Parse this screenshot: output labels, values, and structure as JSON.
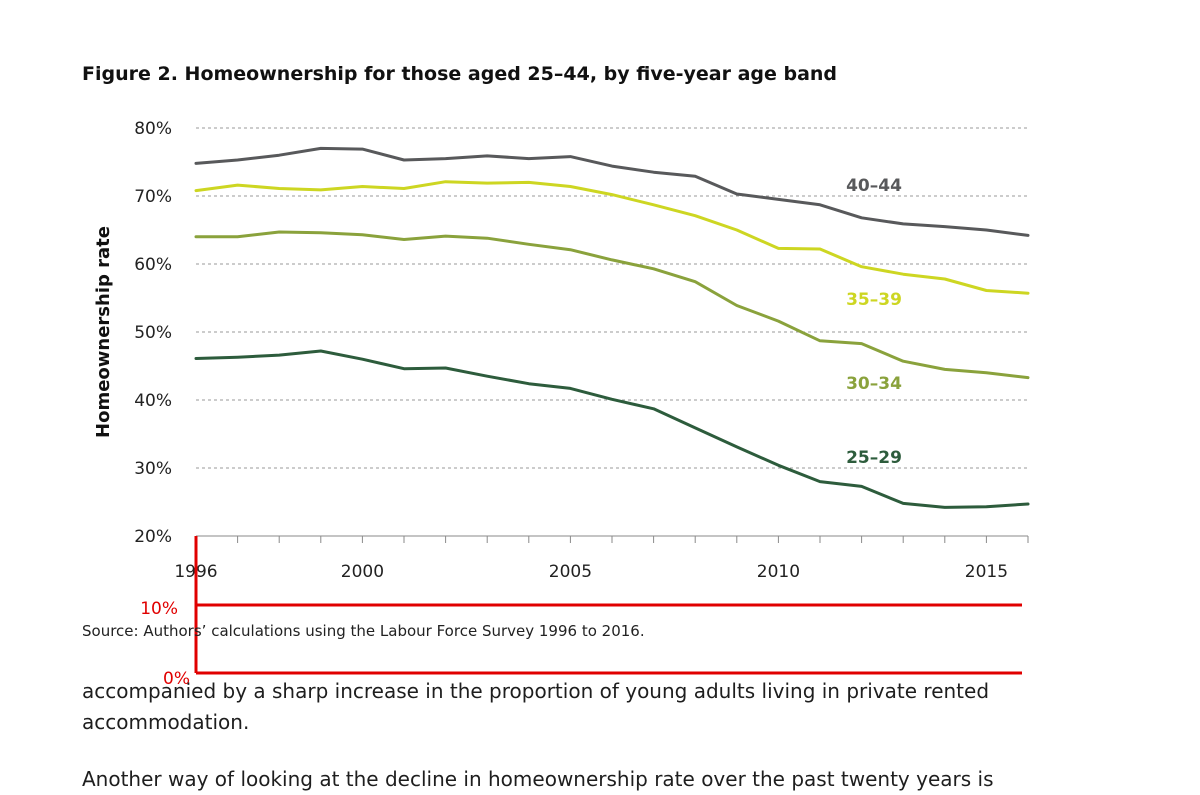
{
  "chart_data": {
    "type": "line",
    "title": "Figure 2. Homeownership for those aged 25–44, by five-year age band",
    "ylabel": "Homeownership rate",
    "xlabel": "",
    "xlim": [
      1996,
      2016
    ],
    "ylim": [
      20,
      80
    ],
    "x_ticks": [
      1996,
      2000,
      2005,
      2010,
      2015
    ],
    "x_tick_labels": [
      "1996",
      "2000",
      "2005",
      "2010",
      "2015"
    ],
    "y_ticks": [
      20,
      30,
      40,
      50,
      60,
      70,
      80
    ],
    "y_tick_labels": [
      "20%",
      "30%",
      "40%",
      "50%",
      "60%",
      "70%",
      "80%"
    ],
    "grid": "horizontal dashed",
    "x": [
      1996,
      1997,
      1998,
      1999,
      2000,
      2001,
      2002,
      2003,
      2004,
      2005,
      2006,
      2007,
      2008,
      2009,
      2010,
      2011,
      2012,
      2013,
      2014,
      2015,
      2016
    ],
    "series": [
      {
        "name": "40–44",
        "color": "#58595b",
        "values": [
          74.8,
          75.3,
          76.0,
          77.0,
          76.9,
          75.3,
          75.5,
          75.9,
          75.5,
          75.8,
          74.4,
          73.5,
          72.9,
          70.3,
          69.5,
          68.7,
          66.8,
          65.9,
          65.5,
          65.0,
          64.2
        ]
      },
      {
        "name": "35–39",
        "color": "#cdd622",
        "values": [
          70.8,
          71.6,
          71.1,
          70.9,
          71.4,
          71.1,
          72.1,
          71.9,
          72.0,
          71.4,
          70.2,
          68.7,
          67.1,
          65.0,
          62.3,
          62.2,
          59.6,
          58.5,
          57.8,
          56.1,
          55.7
        ]
      },
      {
        "name": "30–34",
        "color": "#8aa23c",
        "values": [
          64.0,
          64.0,
          64.7,
          64.6,
          64.3,
          63.6,
          64.1,
          63.8,
          62.9,
          62.1,
          60.6,
          59.3,
          57.4,
          53.9,
          51.6,
          48.7,
          48.3,
          45.7,
          44.5,
          44.0,
          43.3
        ]
      },
      {
        "name": "25–29",
        "color": "#2d5c3c",
        "values": [
          46.1,
          46.3,
          46.6,
          47.2,
          46.0,
          44.6,
          44.7,
          43.5,
          42.4,
          41.7,
          40.1,
          38.7,
          35.9,
          33.1,
          30.4,
          28.0,
          27.3,
          24.8,
          24.2,
          24.3,
          24.7
        ]
      }
    ],
    "source": "Source: Authors’ calculations using the Labour Force Survey 1996 to 2016.",
    "overlay": {
      "labels": [
        "10%",
        "0%"
      ],
      "color": "#e00000"
    }
  },
  "body": {
    "para_1": "accompanied by a sharp increase in the proportion of young adults living in private rented accommodation.",
    "para_1_line_1": "accompanied by a sharp increase in the proportion of young adults living in private rented",
    "para_1_line_2": "accommodation.",
    "para_2_partial": "Another way of looking at the decline in homeownership rate over the past twenty years is"
  }
}
